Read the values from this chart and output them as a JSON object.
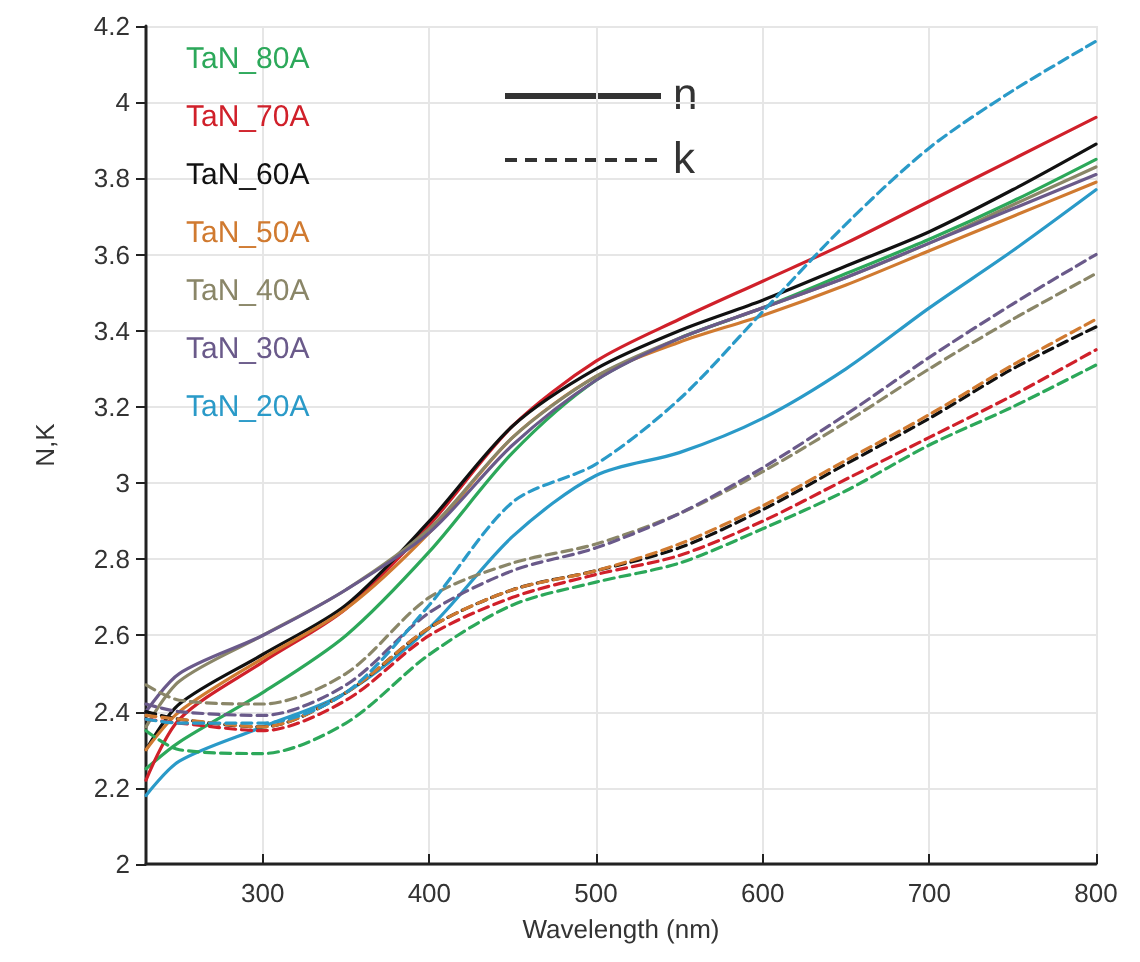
{
  "chart_data": {
    "type": "line",
    "xlabel": "Wavelength (nm)",
    "ylabel": "N,K",
    "x": [
      230,
      250,
      300,
      350,
      400,
      450,
      500,
      550,
      600,
      650,
      700,
      750,
      800
    ],
    "xlim": [
      230,
      800
    ],
    "xticks": [
      300,
      400,
      500,
      600,
      700,
      800
    ],
    "ylim": [
      2,
      4.2
    ],
    "yticks": [
      2,
      2.2,
      2.4,
      2.6,
      2.8,
      3,
      3.2,
      3.4,
      3.6,
      3.8,
      4,
      4.2
    ],
    "grid": true,
    "legend": "top left",
    "marker": "none",
    "annotations": [
      "n",
      "k"
    ],
    "series": [
      {
        "name": "TaN_80A",
        "color": "#2ca85a",
        "line_style": "solid",
        "values": [
          2.25,
          2.32,
          2.45,
          2.6,
          2.82,
          3.08,
          3.27,
          3.38,
          3.46,
          3.55,
          3.64,
          3.74,
          3.85
        ]
      },
      {
        "name": "TaN_70A",
        "color": "#d0202a",
        "line_style": "solid",
        "values": [
          2.22,
          2.38,
          2.53,
          2.67,
          2.89,
          3.15,
          3.32,
          3.43,
          3.53,
          3.63,
          3.74,
          3.85,
          3.96
        ]
      },
      {
        "name": "TaN_60A",
        "color": "#111111",
        "line_style": "solid",
        "values": [
          2.3,
          2.42,
          2.55,
          2.68,
          2.9,
          3.15,
          3.3,
          3.4,
          3.48,
          3.57,
          3.66,
          3.77,
          3.89
        ]
      },
      {
        "name": "TaN_50A",
        "color": "#d07a30",
        "line_style": "solid",
        "values": [
          2.3,
          2.4,
          2.54,
          2.67,
          2.87,
          3.12,
          3.28,
          3.37,
          3.44,
          3.52,
          3.61,
          3.7,
          3.79
        ]
      },
      {
        "name": "TaN_40A",
        "color": "#8a8668",
        "line_style": "solid",
        "values": [
          2.36,
          2.48,
          2.6,
          2.72,
          2.88,
          3.12,
          3.28,
          3.38,
          3.46,
          3.54,
          3.63,
          3.73,
          3.83
        ]
      },
      {
        "name": "TaN_30A",
        "color": "#6a5a8a",
        "line_style": "solid",
        "values": [
          2.4,
          2.5,
          2.6,
          2.72,
          2.87,
          3.1,
          3.27,
          3.38,
          3.46,
          3.54,
          3.63,
          3.72,
          3.81
        ]
      },
      {
        "name": "TaN_20A",
        "color": "#2a9ac8",
        "line_style": "solid",
        "values": [
          2.18,
          2.27,
          2.36,
          2.45,
          2.62,
          2.86,
          3.02,
          3.08,
          3.17,
          3.3,
          3.46,
          3.61,
          3.77
        ]
      },
      {
        "color": "#2ca85a",
        "line_style": "dashed",
        "values": [
          2.35,
          2.3,
          2.29,
          2.37,
          2.55,
          2.68,
          2.74,
          2.79,
          2.88,
          2.98,
          3.1,
          3.2,
          3.31
        ]
      },
      {
        "color": "#d0202a",
        "line_style": "dashed",
        "values": [
          2.38,
          2.37,
          2.35,
          2.43,
          2.6,
          2.7,
          2.76,
          2.81,
          2.9,
          3.01,
          3.12,
          3.23,
          3.35
        ]
      },
      {
        "color": "#111111",
        "line_style": "dashed",
        "values": [
          2.4,
          2.38,
          2.36,
          2.45,
          2.62,
          2.72,
          2.77,
          2.83,
          2.93,
          3.05,
          3.17,
          3.3,
          3.41
        ]
      },
      {
        "color": "#d07a30",
        "line_style": "dashed",
        "values": [
          2.39,
          2.38,
          2.36,
          2.45,
          2.62,
          2.72,
          2.77,
          2.84,
          2.94,
          3.06,
          3.18,
          3.31,
          3.43
        ]
      },
      {
        "color": "#8a8668",
        "line_style": "dashed",
        "values": [
          2.47,
          2.43,
          2.42,
          2.5,
          2.7,
          2.79,
          2.84,
          2.92,
          3.03,
          3.16,
          3.3,
          3.43,
          3.55
        ]
      },
      {
        "color": "#6a5a8a",
        "line_style": "dashed",
        "values": [
          2.42,
          2.4,
          2.39,
          2.47,
          2.66,
          2.77,
          2.83,
          2.92,
          3.04,
          3.18,
          3.33,
          3.47,
          3.6
        ]
      },
      {
        "color": "#2a9ac8",
        "line_style": "dashed",
        "values": [
          2.38,
          2.37,
          2.37,
          2.45,
          2.68,
          2.95,
          3.05,
          3.22,
          3.45,
          3.68,
          3.88,
          4.03,
          4.16
        ]
      }
    ]
  }
}
